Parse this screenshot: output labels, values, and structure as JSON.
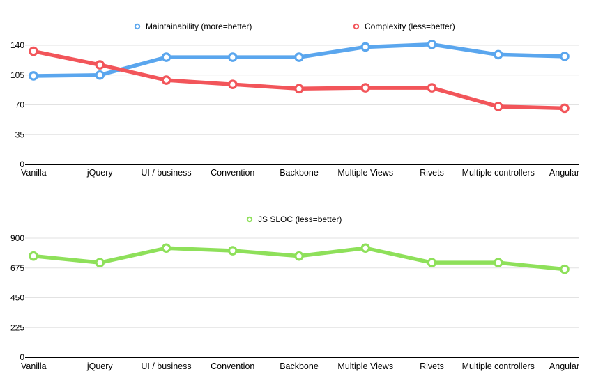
{
  "chart_data": [
    {
      "type": "line",
      "categories": [
        "Vanilla",
        "jQuery",
        "UI / business",
        "Convention",
        "Backbone",
        "Multiple Views",
        "Rivets",
        "Multiple controllers",
        "Angular"
      ],
      "series": [
        {
          "name": "Maintainability (more=better)",
          "color": "#5aa6ee",
          "values": [
            104,
            105,
            126,
            126,
            126,
            138,
            141,
            129,
            127
          ]
        },
        {
          "name": "Complexity (less=better)",
          "color": "#f2555a",
          "values": [
            133,
            117,
            99,
            94,
            89,
            90,
            90,
            68,
            66
          ]
        }
      ],
      "yticks": [
        0,
        35,
        70,
        105,
        140
      ],
      "ylim": [
        0,
        140
      ],
      "grid": true,
      "legend": "top-center",
      "title": "",
      "xlabel": "",
      "ylabel": ""
    },
    {
      "type": "line",
      "categories": [
        "Vanilla",
        "jQuery",
        "UI / business",
        "Convention",
        "Backbone",
        "Multiple Views",
        "Rivets",
        "Multiple controllers",
        "Angular"
      ],
      "series": [
        {
          "name": "JS SLOC (less=better)",
          "color": "#8ee05a",
          "values": [
            765,
            715,
            825,
            805,
            765,
            825,
            715,
            715,
            665
          ]
        }
      ],
      "yticks": [
        0,
        225,
        450,
        675,
        900
      ],
      "ylim": [
        0,
        900
      ],
      "grid": true,
      "legend": "top-center",
      "title": "",
      "xlabel": "",
      "ylabel": ""
    }
  ]
}
